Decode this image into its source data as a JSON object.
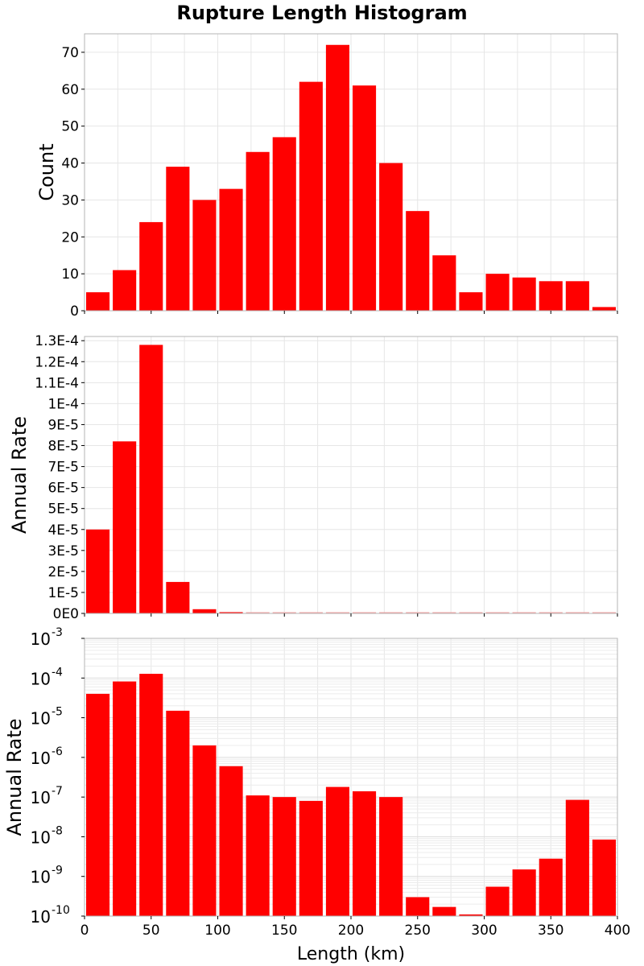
{
  "title": "Rupture Length Histogram",
  "colors": {
    "bar": "#ff0000",
    "grid": "#e6e6e6",
    "frame": "#b4b4b4"
  },
  "chart_data": [
    {
      "type": "bar",
      "id": "count",
      "title": "Rupture Length Histogram",
      "xlabel": "",
      "ylabel": "Count",
      "xlim": [
        0,
        400
      ],
      "ylim": [
        0,
        75
      ],
      "bin_width": 20,
      "x": [
        10,
        30,
        50,
        70,
        90,
        110,
        130,
        150,
        170,
        190,
        210,
        230,
        250,
        270,
        290,
        310,
        330,
        350,
        370,
        390
      ],
      "values": [
        5,
        11,
        24,
        39,
        30,
        33,
        43,
        47,
        62,
        72,
        61,
        40,
        27,
        15,
        5,
        10,
        9,
        8,
        8,
        1
      ],
      "yticks": [
        0,
        10,
        20,
        30,
        40,
        50,
        60,
        70
      ],
      "ytick_labels": [
        "0",
        "10",
        "20",
        "30",
        "40",
        "50",
        "60",
        "70"
      ],
      "grid": true
    },
    {
      "type": "bar",
      "id": "rate-linear",
      "xlabel": "",
      "ylabel": "Annual Rate",
      "xlim": [
        0,
        400
      ],
      "ylim": [
        0,
        0.000132
      ],
      "bin_width": 20,
      "x": [
        10,
        30,
        50,
        70,
        90,
        110,
        130,
        150,
        170,
        190,
        210,
        230,
        250,
        270,
        290,
        310,
        330,
        350,
        370,
        390
      ],
      "values": [
        4e-05,
        8.2e-05,
        0.000128,
        1.5e-05,
        2e-06,
        6e-07,
        1.1e-07,
        1e-07,
        8e-08,
        1.8e-07,
        1.4e-07,
        1e-07,
        3e-10,
        1.7e-10,
        1.1e-10,
        5.5e-10,
        1.5e-09,
        2.8e-09,
        8.5e-08,
        8.5e-09
      ],
      "yticks": [
        0,
        1e-05,
        2e-05,
        3e-05,
        4e-05,
        5e-05,
        6e-05,
        7e-05,
        8e-05,
        9e-05,
        0.0001,
        0.00011,
        0.00012,
        0.00013
      ],
      "ytick_labels": [
        "0E0",
        "1E-5",
        "2E-5",
        "3E-5",
        "4E-5",
        "5E-5",
        "6E-5",
        "7E-5",
        "8E-5",
        "9E-5",
        "1E-4",
        "1.1E-4",
        "1.2E-4",
        "1.3E-4"
      ],
      "grid": true
    },
    {
      "type": "bar",
      "id": "rate-log",
      "xlabel": "Length (km)",
      "ylabel": "Annual Rate",
      "yscale": "log",
      "xlim": [
        0,
        400
      ],
      "ylim": [
        1e-10,
        0.001
      ],
      "bin_width": 20,
      "x": [
        10,
        30,
        50,
        70,
        90,
        110,
        130,
        150,
        170,
        190,
        210,
        230,
        250,
        270,
        290,
        310,
        330,
        350,
        370,
        390
      ],
      "values": [
        4e-05,
        8.2e-05,
        0.000128,
        1.5e-05,
        2e-06,
        6e-07,
        1.1e-07,
        1e-07,
        8e-08,
        1.8e-07,
        1.4e-07,
        1e-07,
        3e-10,
        1.7e-10,
        1.1e-10,
        5.5e-10,
        1.5e-09,
        2.8e-09,
        8.5e-08,
        8.5e-09
      ],
      "yticks": [
        1e-10,
        1e-09,
        1e-08,
        1e-07,
        1e-06,
        1e-05,
        0.0001,
        0.001
      ],
      "ytick_base": "10",
      "ytick_exponents": [
        "-10",
        "-9",
        "-8",
        "-7",
        "-6",
        "-5",
        "-4",
        "-3"
      ],
      "xticks": [
        0,
        50,
        100,
        150,
        200,
        250,
        300,
        350,
        400
      ],
      "xtick_labels": [
        "0",
        "50",
        "100",
        "150",
        "200",
        "250",
        "300",
        "350",
        "400"
      ],
      "grid": true
    }
  ]
}
